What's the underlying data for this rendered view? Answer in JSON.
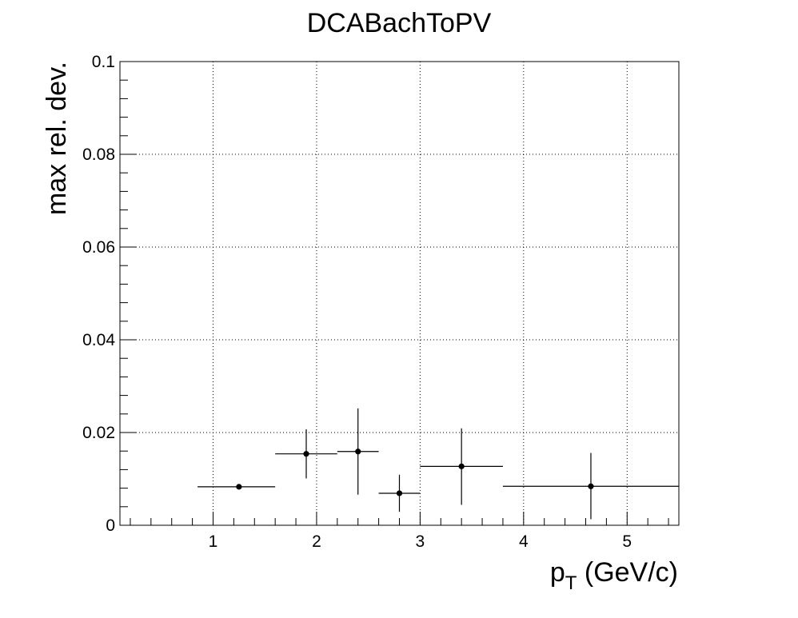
{
  "chart_data": {
    "type": "scatter",
    "title": "DCABachToPV",
    "xlabel_main": "p",
    "xlabel_sub": "T",
    "xlabel_unit": " (GeV/c)",
    "ylabel": "max rel. dev.",
    "xlim": [
      0.1,
      5.5
    ],
    "ylim": [
      0,
      0.1
    ],
    "xticks": [
      1,
      2,
      3,
      4,
      5
    ],
    "yticks": [
      0,
      0.02,
      0.04,
      0.06,
      0.08,
      0.1
    ],
    "ytick_labels": [
      "0",
      "0.02",
      "0.04",
      "0.06",
      "0.08",
      "0.1"
    ],
    "grid": true,
    "points": [
      {
        "x": 1.25,
        "xlo": 0.85,
        "xhi": 1.6,
        "y": 0.0083,
        "ylo": 0.0081,
        "yhi": 0.0085
      },
      {
        "x": 1.9,
        "xlo": 1.6,
        "xhi": 2.2,
        "y": 0.0154,
        "ylo": 0.0101,
        "yhi": 0.0207
      },
      {
        "x": 2.4,
        "xlo": 2.2,
        "xhi": 2.6,
        "y": 0.0159,
        "ylo": 0.0066,
        "yhi": 0.0252
      },
      {
        "x": 2.8,
        "xlo": 2.6,
        "xhi": 3.0,
        "y": 0.0069,
        "ylo": 0.0029,
        "yhi": 0.0109
      },
      {
        "x": 3.4,
        "xlo": 3.0,
        "xhi": 3.8,
        "y": 0.0127,
        "ylo": 0.0044,
        "yhi": 0.0209
      },
      {
        "x": 4.65,
        "xlo": 3.8,
        "xhi": 5.5,
        "y": 0.0084,
        "ylo": 0.0013,
        "yhi": 0.0156
      }
    ]
  }
}
